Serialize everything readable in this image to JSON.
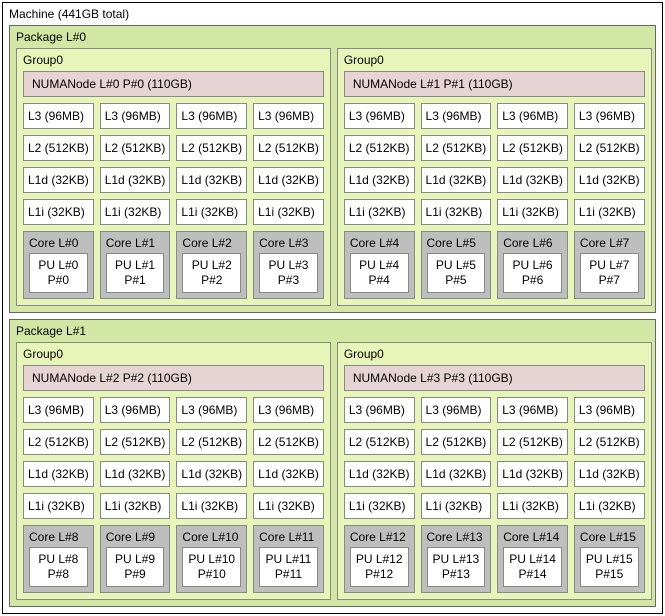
{
  "machine_label": "Machine (441GB total)",
  "packages": [
    {
      "label": "Package L#0",
      "groups": [
        {
          "label": "Group0",
          "numa": "NUMANode L#0 P#0 (110GB)",
          "cache_rows": [
            [
              "L3 (96MB)",
              "L3 (96MB)",
              "L3 (96MB)",
              "L3 (96MB)"
            ],
            [
              "L2 (512KB)",
              "L2 (512KB)",
              "L2 (512KB)",
              "L2 (512KB)"
            ],
            [
              "L1d (32KB)",
              "L1d (32KB)",
              "L1d (32KB)",
              "L1d (32KB)"
            ],
            [
              "L1i (32KB)",
              "L1i (32KB)",
              "L1i (32KB)",
              "L1i (32KB)"
            ]
          ],
          "cores": [
            {
              "label": "Core L#0",
              "pu_l": "PU L#0",
              "pu_p": "P#0"
            },
            {
              "label": "Core L#1",
              "pu_l": "PU L#1",
              "pu_p": "P#1"
            },
            {
              "label": "Core L#2",
              "pu_l": "PU L#2",
              "pu_p": "P#2"
            },
            {
              "label": "Core L#3",
              "pu_l": "PU L#3",
              "pu_p": "P#3"
            }
          ]
        },
        {
          "label": "Group0",
          "numa": "NUMANode L#1 P#1 (110GB)",
          "cache_rows": [
            [
              "L3 (96MB)",
              "L3 (96MB)",
              "L3 (96MB)",
              "L3 (96MB)"
            ],
            [
              "L2 (512KB)",
              "L2 (512KB)",
              "L2 (512KB)",
              "L2 (512KB)"
            ],
            [
              "L1d (32KB)",
              "L1d (32KB)",
              "L1d (32KB)",
              "L1d (32KB)"
            ],
            [
              "L1i (32KB)",
              "L1i (32KB)",
              "L1i (32KB)",
              "L1i (32KB)"
            ]
          ],
          "cores": [
            {
              "label": "Core L#4",
              "pu_l": "PU L#4",
              "pu_p": "P#4"
            },
            {
              "label": "Core L#5",
              "pu_l": "PU L#5",
              "pu_p": "P#5"
            },
            {
              "label": "Core L#6",
              "pu_l": "PU L#6",
              "pu_p": "P#6"
            },
            {
              "label": "Core L#7",
              "pu_l": "PU L#7",
              "pu_p": "P#7"
            }
          ]
        }
      ]
    },
    {
      "label": "Package L#1",
      "groups": [
        {
          "label": "Group0",
          "numa": "NUMANode L#2 P#2 (110GB)",
          "cache_rows": [
            [
              "L3 (96MB)",
              "L3 (96MB)",
              "L3 (96MB)",
              "L3 (96MB)"
            ],
            [
              "L2 (512KB)",
              "L2 (512KB)",
              "L2 (512KB)",
              "L2 (512KB)"
            ],
            [
              "L1d (32KB)",
              "L1d (32KB)",
              "L1d (32KB)",
              "L1d (32KB)"
            ],
            [
              "L1i (32KB)",
              "L1i (32KB)",
              "L1i (32KB)",
              "L1i (32KB)"
            ]
          ],
          "cores": [
            {
              "label": "Core L#8",
              "pu_l": "PU L#8",
              "pu_p": "P#8"
            },
            {
              "label": "Core L#9",
              "pu_l": "PU L#9",
              "pu_p": "P#9"
            },
            {
              "label": "Core L#10",
              "pu_l": "PU L#10",
              "pu_p": "P#10"
            },
            {
              "label": "Core L#11",
              "pu_l": "PU L#11",
              "pu_p": "P#11"
            }
          ]
        },
        {
          "label": "Group0",
          "numa": "NUMANode L#3 P#3 (110GB)",
          "cache_rows": [
            [
              "L3 (96MB)",
              "L3 (96MB)",
              "L3 (96MB)",
              "L3 (96MB)"
            ],
            [
              "L2 (512KB)",
              "L2 (512KB)",
              "L2 (512KB)",
              "L2 (512KB)"
            ],
            [
              "L1d (32KB)",
              "L1d (32KB)",
              "L1d (32KB)",
              "L1d (32KB)"
            ],
            [
              "L1i (32KB)",
              "L1i (32KB)",
              "L1i (32KB)",
              "L1i (32KB)"
            ]
          ],
          "cores": [
            {
              "label": "Core L#12",
              "pu_l": "PU L#12",
              "pu_p": "P#12"
            },
            {
              "label": "Core L#13",
              "pu_l": "PU L#13",
              "pu_p": "P#13"
            },
            {
              "label": "Core L#14",
              "pu_l": "PU L#14",
              "pu_p": "P#14"
            },
            {
              "label": "Core L#15",
              "pu_l": "PU L#15",
              "pu_p": "P#15"
            }
          ]
        }
      ]
    }
  ],
  "colors": {
    "package_bg": "#d2e7a4",
    "group_bg": "#e7f6b8",
    "numa_bg": "#e6d4d4",
    "core_bg": "#bebebe",
    "box_bg": "#ffffff",
    "border": "#888888"
  }
}
